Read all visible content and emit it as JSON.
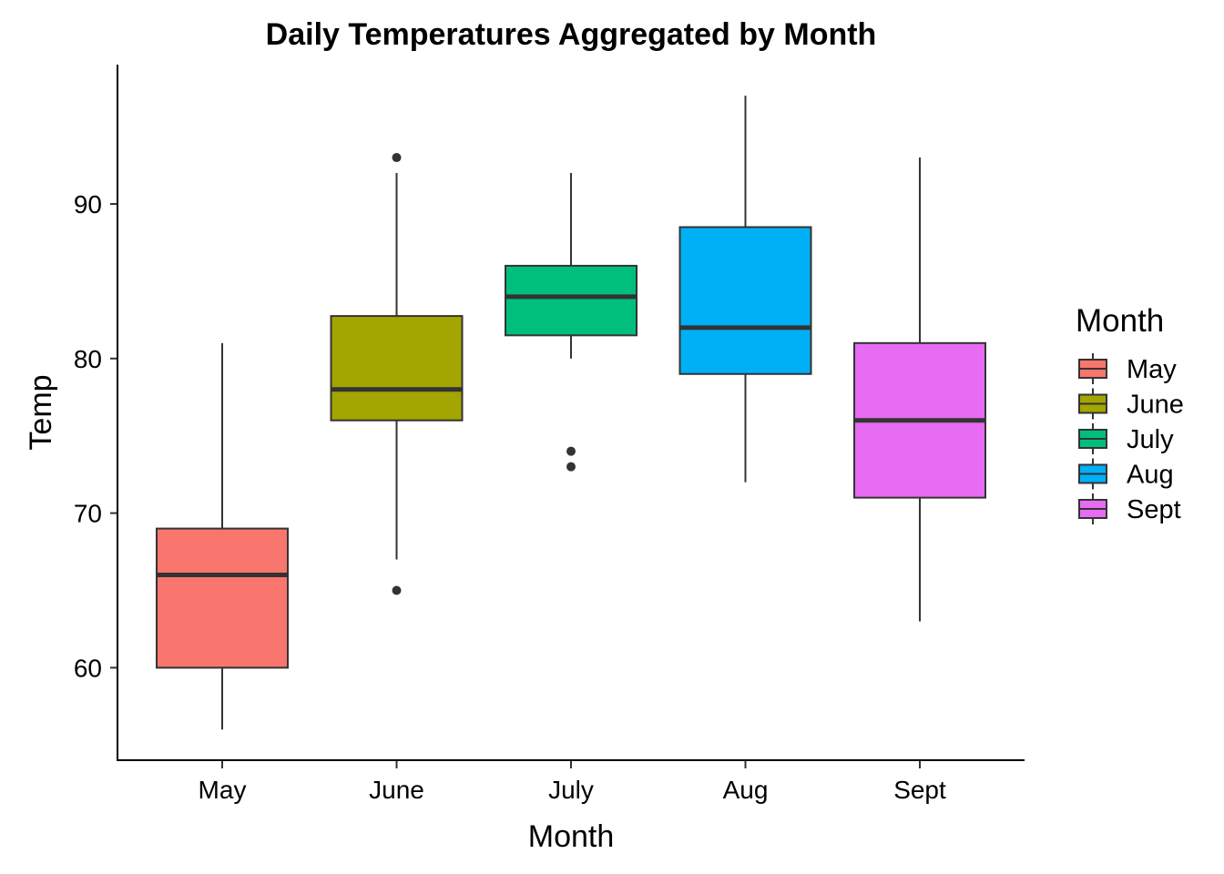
{
  "chart_data": {
    "type": "boxplot",
    "title": "Daily Temperatures Aggregated by Month",
    "xlabel": "Month",
    "ylabel": "Temp",
    "ylim": [
      55,
      98
    ],
    "yticks": [
      60,
      70,
      80,
      90
    ],
    "grid": false,
    "legend": {
      "title": "Month",
      "placement": "right"
    },
    "categories": [
      "May",
      "June",
      "July",
      "Aug",
      "Sept"
    ],
    "boxes": [
      {
        "name": "May",
        "color": "#F8766D",
        "min": 56,
        "q1": 60,
        "median": 66,
        "q3": 69,
        "max": 81,
        "outliers": []
      },
      {
        "name": "June",
        "color": "#A3A500",
        "min": 67,
        "q1": 76,
        "median": 78,
        "q3": 82.75,
        "max": 92,
        "outliers": [
          93,
          65
        ]
      },
      {
        "name": "July",
        "color": "#00BF7D",
        "min": 80,
        "q1": 81.5,
        "median": 84,
        "q3": 86,
        "max": 92,
        "outliers": [
          74,
          73
        ]
      },
      {
        "name": "Aug",
        "color": "#00B0F6",
        "min": 72,
        "q1": 79,
        "median": 82,
        "q3": 88.5,
        "max": 97,
        "outliers": []
      },
      {
        "name": "Sept",
        "color": "#E76BF3",
        "min": 63,
        "q1": 71,
        "median": 76,
        "q3": 81,
        "max": 93,
        "outliers": []
      }
    ]
  }
}
